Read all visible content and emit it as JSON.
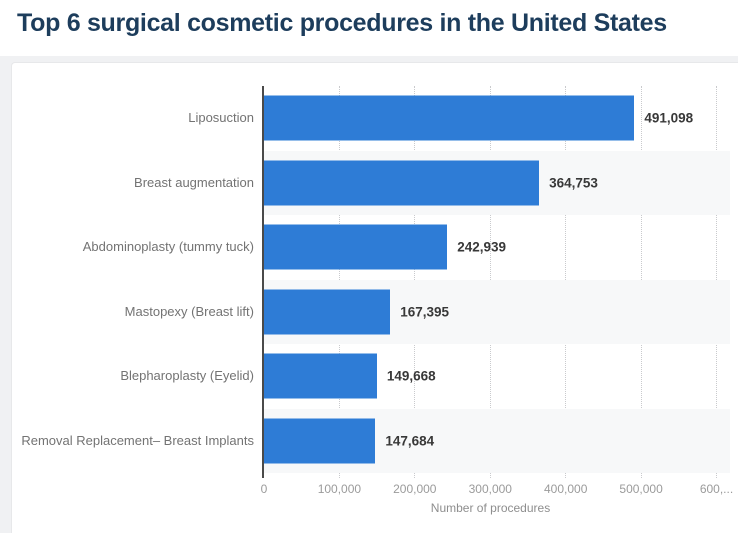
{
  "page": {
    "title": "Top 6 surgical cosmetic procedures in the United States"
  },
  "chart_data": {
    "type": "bar",
    "orientation": "horizontal",
    "title": "Top 6 surgical cosmetic procedures in the United States",
    "categories": [
      "Liposuction",
      "Breast augmentation",
      "Abdominoplasty (tummy tuck)",
      "Mastopexy (Breast lift)",
      "Blepharoplasty (Eyelid)",
      "Removal Replacement– Breast Implants"
    ],
    "values": [
      491098,
      364753,
      242939,
      167395,
      149668,
      147684
    ],
    "value_labels": [
      "491,098",
      "364,753",
      "242,939",
      "167,395",
      "149,668",
      "147,684"
    ],
    "xlabel": "Number of procedures",
    "ylabel": "",
    "xlim": [
      0,
      600000
    ],
    "x_ticks": [
      {
        "value": 0,
        "label": "0"
      },
      {
        "value": 100000,
        "label": "100,000"
      },
      {
        "value": 200000,
        "label": "200,000"
      },
      {
        "value": 300000,
        "label": "300,000"
      },
      {
        "value": 400000,
        "label": "400,000"
      },
      {
        "value": 500000,
        "label": "500,000"
      },
      {
        "value": 600000,
        "label": "600,..."
      }
    ],
    "grid": "vertical-dotted",
    "legend": "none",
    "row_striping": "alternate-even-rows"
  },
  "colors": {
    "page-bg": "#f0f1f3",
    "header-bg": "#ffffff",
    "title": "#1d3d5c",
    "card-bg": "#ffffff",
    "card-border": "#e7e8ea",
    "bar": "#2e7cd6",
    "stripe": "#f7f8f9",
    "grid": "#c9cacd",
    "axis-line": "#4a4a4a",
    "category-label": "#737373",
    "value-label": "#383838",
    "tick-label": "#9b9b9b",
    "axis-title": "#8e8e8e"
  }
}
